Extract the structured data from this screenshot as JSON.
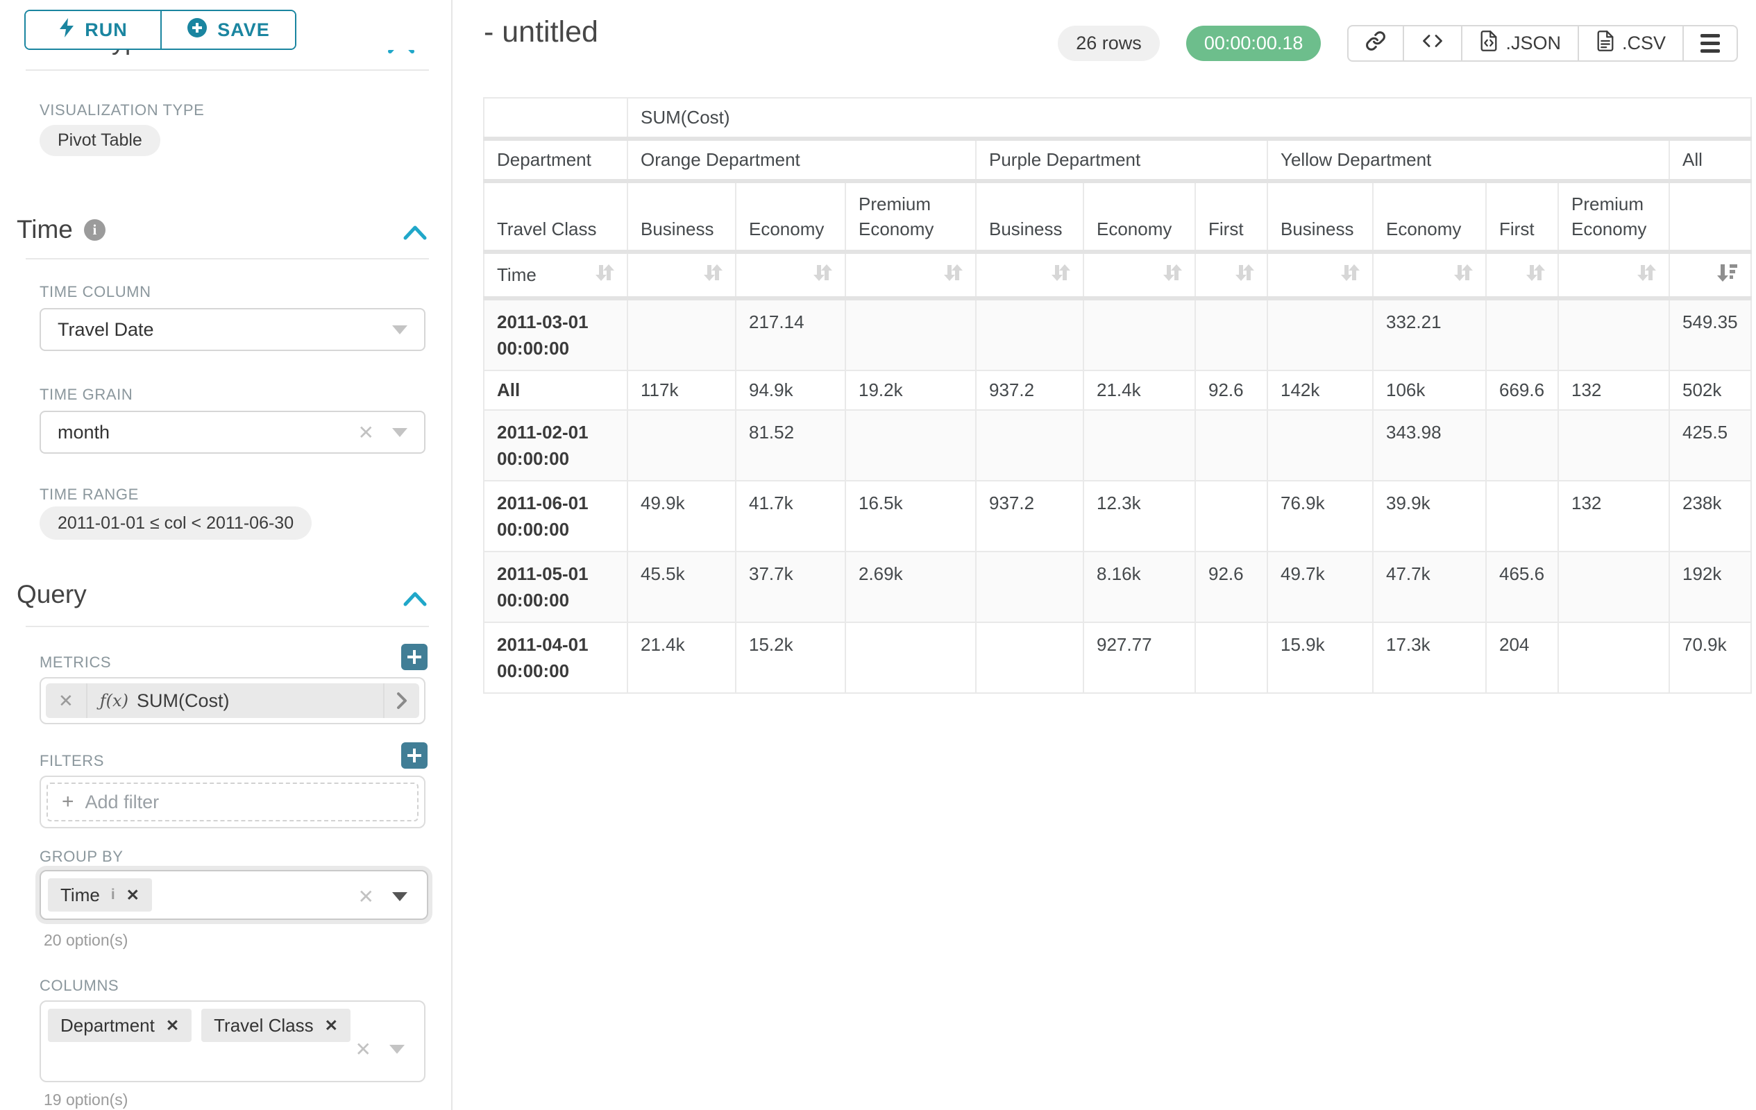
{
  "sidebar": {
    "run_label": "RUN",
    "save_label": "SAVE",
    "chart_type_heading": "Chart Type",
    "visualization_type_label": "VISUALIZATION TYPE",
    "visualization_type_value": "Pivot Table",
    "time_section": {
      "title": "Time",
      "time_column_label": "TIME COLUMN",
      "time_column_value": "Travel Date",
      "time_grain_label": "TIME GRAIN",
      "time_grain_value": "month",
      "time_range_label": "TIME RANGE",
      "time_range_value": "2011-01-01 ≤ col < 2011-06-30"
    },
    "query_section": {
      "title": "Query",
      "metrics_label": "METRICS",
      "metric_fx": "ƒ(x)",
      "metric_value": "SUM(Cost)",
      "filters_label": "FILTERS",
      "add_filter_placeholder": "Add filter",
      "group_by_label": "GROUP BY",
      "group_by_tags": [
        "Time"
      ],
      "group_by_options_hint": "20 option(s)",
      "columns_label": "COLUMNS",
      "columns_tags": [
        "Department",
        "Travel Class"
      ],
      "columns_options_hint": "19 option(s)"
    }
  },
  "header": {
    "title": "- untitled",
    "row_count": "26 rows",
    "timer": "00:00:00.18",
    "export_json_label": ".JSON",
    "export_csv_label": ".CSV"
  },
  "colors": {
    "accent_teal": "#1a85a0",
    "plus_button_teal": "#417e96",
    "chevron_blue": "#20a7c9",
    "timer_green": "#6dbe8c"
  },
  "pivot": {
    "metric_header": "SUM(Cost)",
    "column_dimensions": [
      "Department",
      "Travel Class"
    ],
    "row_dimension": "Time",
    "groups": [
      {
        "name": "Orange Department",
        "classes": [
          "Business",
          "Economy",
          "Premium Economy"
        ]
      },
      {
        "name": "Purple Department",
        "classes": [
          "Business",
          "Economy",
          "First"
        ]
      },
      {
        "name": "Yellow Department",
        "classes": [
          "Business",
          "Economy",
          "First",
          "Premium Economy"
        ]
      },
      {
        "name": "All",
        "classes": [
          ""
        ]
      }
    ],
    "sorted_column": "All",
    "sort_direction": "desc",
    "rows": [
      {
        "label": "2011-03-01 00:00:00",
        "tall": true,
        "values": [
          "",
          "217.14",
          "",
          "",
          "",
          "",
          "",
          "332.21",
          "",
          "",
          "549.35"
        ]
      },
      {
        "label": "All",
        "tall": false,
        "values": [
          "117k",
          "94.9k",
          "19.2k",
          "937.2",
          "21.4k",
          "92.6",
          "142k",
          "106k",
          "669.6",
          "132",
          "502k"
        ]
      },
      {
        "label": "2011-02-01 00:00:00",
        "tall": true,
        "values": [
          "",
          "81.52",
          "",
          "",
          "",
          "",
          "",
          "343.98",
          "",
          "",
          "425.5"
        ]
      },
      {
        "label": "2011-06-01 00:00:00",
        "tall": true,
        "values": [
          "49.9k",
          "41.7k",
          "16.5k",
          "937.2",
          "12.3k",
          "",
          "76.9k",
          "39.9k",
          "",
          "132",
          "238k"
        ]
      },
      {
        "label": "2011-05-01 00:00:00",
        "tall": true,
        "values": [
          "45.5k",
          "37.7k",
          "2.69k",
          "",
          "8.16k",
          "92.6",
          "49.7k",
          "47.7k",
          "465.6",
          "",
          "192k"
        ]
      },
      {
        "label": "2011-04-01 00:00:00",
        "tall": true,
        "values": [
          "21.4k",
          "15.2k",
          "",
          "",
          "927.77",
          "",
          "15.9k",
          "17.3k",
          "204",
          "",
          "70.9k"
        ]
      }
    ]
  }
}
